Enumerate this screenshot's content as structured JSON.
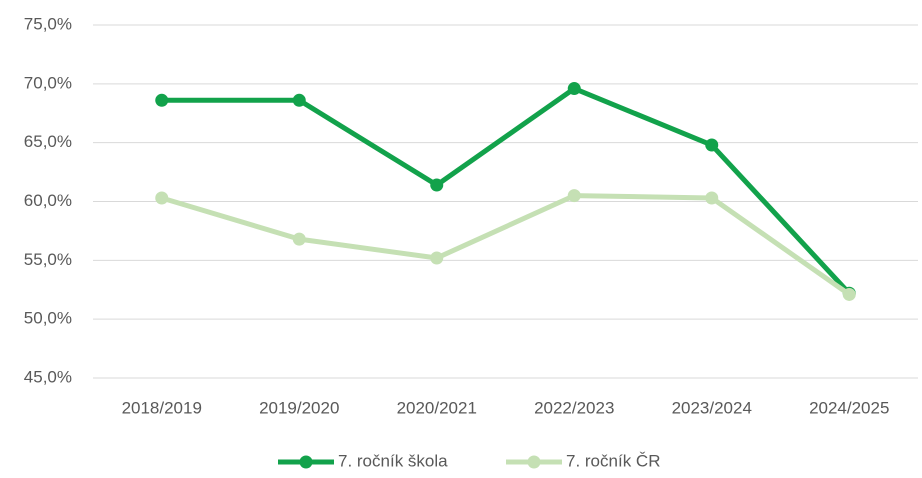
{
  "chart_data": {
    "type": "line",
    "categories": [
      "2018/2019",
      "2019/2020",
      "2020/2021",
      "2022/2023",
      "2023/2024",
      "2024/2025"
    ],
    "series": [
      {
        "name": "7. ročník škola",
        "color": "#12a24b",
        "values": [
          68.6,
          68.6,
          61.4,
          69.6,
          64.8,
          52.2
        ]
      },
      {
        "name": "7. ročník ČR",
        "color": "#c5e0b4",
        "values": [
          60.3,
          56.8,
          55.2,
          60.5,
          60.3,
          52.1
        ]
      }
    ],
    "ylim": [
      45,
      75
    ],
    "yticks": [
      {
        "value": 45,
        "label": "45,0%"
      },
      {
        "value": 50,
        "label": "50,0%"
      },
      {
        "value": 55,
        "label": "55,0%"
      },
      {
        "value": 60,
        "label": "60,0%"
      },
      {
        "value": 65,
        "label": "65,0%"
      },
      {
        "value": 70,
        "label": "70,0%"
      },
      {
        "value": 75,
        "label": "75,0%"
      }
    ],
    "grid": true,
    "legend": "bottom"
  }
}
